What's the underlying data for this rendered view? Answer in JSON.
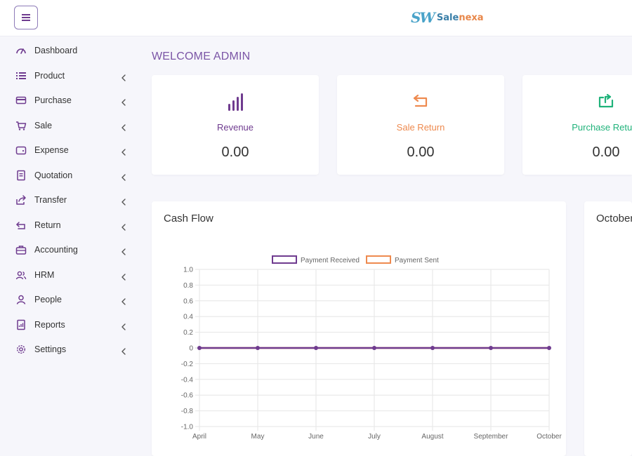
{
  "header": {
    "menu_icon": "hamburger-icon",
    "brand_mark": "SW",
    "brand_name_part1": "Sale",
    "brand_name_part2": "nexa"
  },
  "sidebar": {
    "items": [
      {
        "label": "Dashboard",
        "icon": "gauge-icon",
        "has_submenu": false
      },
      {
        "label": "Product",
        "icon": "list-icon",
        "has_submenu": true
      },
      {
        "label": "Purchase",
        "icon": "card-icon",
        "has_submenu": true
      },
      {
        "label": "Sale",
        "icon": "cart-icon",
        "has_submenu": true
      },
      {
        "label": "Expense",
        "icon": "wallet-icon",
        "has_submenu": true
      },
      {
        "label": "Quotation",
        "icon": "document-icon",
        "has_submenu": true
      },
      {
        "label": "Transfer",
        "icon": "share-icon",
        "has_submenu": true
      },
      {
        "label": "Return",
        "icon": "return-icon",
        "has_submenu": true
      },
      {
        "label": "Accounting",
        "icon": "briefcase-icon",
        "has_submenu": true
      },
      {
        "label": "HRM",
        "icon": "users-icon",
        "has_submenu": true
      },
      {
        "label": "People",
        "icon": "user-icon",
        "has_submenu": true
      },
      {
        "label": "Reports",
        "icon": "report-icon",
        "has_submenu": true
      },
      {
        "label": "Settings",
        "icon": "gear-icon",
        "has_submenu": true
      }
    ]
  },
  "main": {
    "welcome": "WELCOME ADMIN",
    "stats": [
      {
        "label": "Revenue",
        "value": "0.00",
        "icon": "bar-chart-icon",
        "color": "#6f3b8f"
      },
      {
        "label": "Sale Return",
        "value": "0.00",
        "icon": "sale-return-icon",
        "color": "#ee8a4f"
      },
      {
        "label": "Purchase Return",
        "value": "0.00",
        "icon": "purchase-return-icon",
        "color": "#1fb27a"
      }
    ],
    "cash_flow_title": "Cash Flow",
    "side_card_title": "October"
  },
  "chart_data": {
    "type": "line",
    "title": "Cash Flow",
    "categories": [
      "April",
      "May",
      "June",
      "July",
      "August",
      "September",
      "October"
    ],
    "series": [
      {
        "name": "Payment Received",
        "values": [
          0,
          0,
          0,
          0,
          0,
          0,
          0
        ],
        "color": "#6f3b8f"
      },
      {
        "name": "Payment Sent",
        "values": [
          0,
          0,
          0,
          0,
          0,
          0,
          0
        ],
        "color": "#ee8a4f"
      }
    ],
    "ylim": [
      -1.0,
      1.0
    ],
    "yticks": [
      "1.0",
      "0.8",
      "0.6",
      "0.4",
      "0.2",
      "0",
      "-0.2",
      "-0.4",
      "-0.6",
      "-0.8",
      "-1.0"
    ],
    "grid": true,
    "legend": "top"
  }
}
